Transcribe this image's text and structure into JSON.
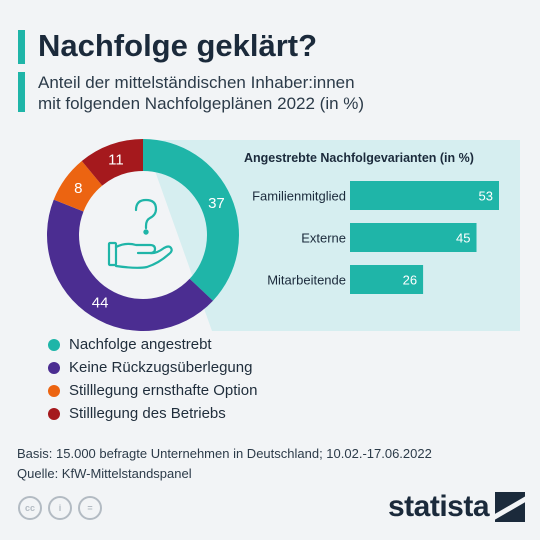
{
  "header": {
    "title": "Nachfolge geklärt?",
    "subtitle_line1": "Anteil der mittelständischen Inhaber:innen",
    "subtitle_line2": "mit folgenden Nachfolgeplänen 2022 (in %)"
  },
  "colors": {
    "accent": "#1fb5a8",
    "teal": "#1fb5a8",
    "purple": "#4b2d91",
    "orange": "#ec6411",
    "darkred": "#a5191d",
    "panel": "#d6eef0",
    "text": "#1b2a3b"
  },
  "chart_data": [
    {
      "type": "pie",
      "variant": "donut",
      "slices": [
        {
          "label": "Nachfolge angestrebt",
          "value": 37,
          "color": "#1fb5a8"
        },
        {
          "label": "Keine Rückzugsüberlegung",
          "value": 44,
          "color": "#4b2d91"
        },
        {
          "label": "Stilllegung ernsthafte Option",
          "value": 8,
          "color": "#ec6411"
        },
        {
          "label": "Stilllegung des Betriebs",
          "value": 11,
          "color": "#a5191d"
        }
      ],
      "center_icon": "hand-question-icon",
      "legend_position": "bottom-left"
    },
    {
      "type": "bar",
      "orientation": "horizontal",
      "title": "Angestrebte Nachfolgevarianten (in %)",
      "categories": [
        "Familienmitglied",
        "Externe",
        "Mitarbeitende"
      ],
      "values": [
        53,
        45,
        26
      ],
      "color": "#1fb5a8",
      "xlim": [
        0,
        55
      ]
    }
  ],
  "footer": {
    "basis": "Basis: 15.000 befragte Unternehmen in Deutschland; 10.02.-17.06.2022",
    "quelle": "Quelle: KfW-Mittelstandspanel"
  },
  "license_icons": [
    "cc",
    "i",
    "="
  ],
  "brand": "statista"
}
